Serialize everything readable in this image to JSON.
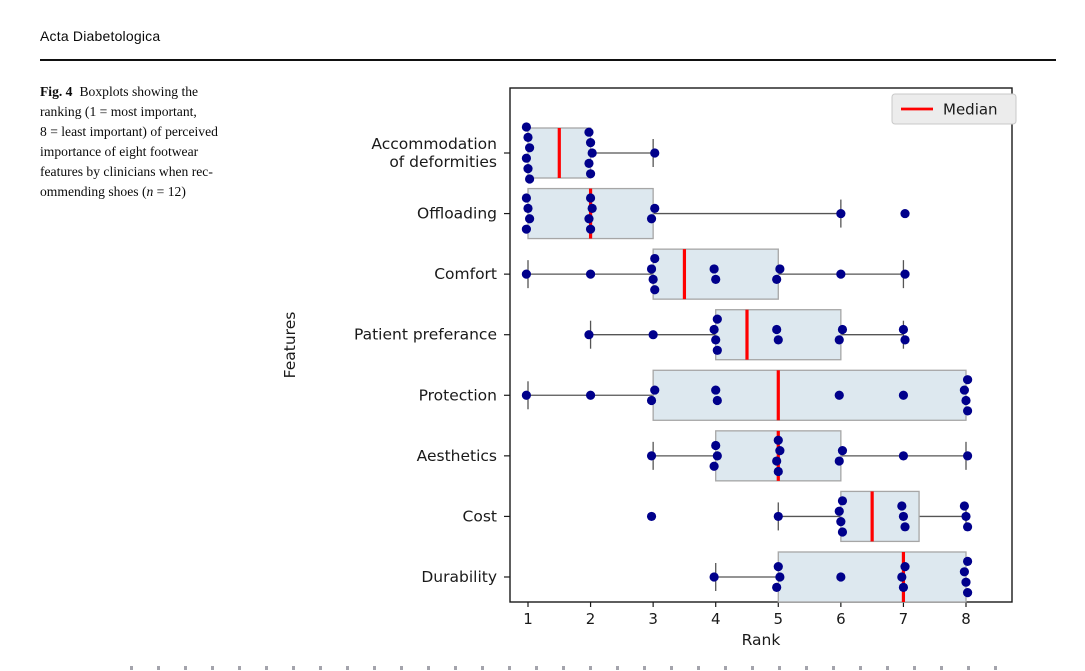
{
  "page": {
    "journal_header": "Acta Diabetologica"
  },
  "figure_caption": {
    "fig_label": "Fig. 4",
    "line1": "Boxplots showing the",
    "line2": "ranking (1 = most important,",
    "line3": "8 = least important) of perceived",
    "line4": "importance of eight footwear",
    "line5": "features by clinicians when rec-",
    "line6_pre": "ommending shoes (",
    "line6_n": "n",
    "line6_post": " = 12)"
  },
  "chart_data": {
    "type": "boxplot",
    "orientation": "horizontal",
    "title": "",
    "xlabel": "Rank",
    "ylabel": "Features",
    "xticks": [
      1,
      2,
      3,
      4,
      5,
      6,
      7,
      8
    ],
    "xlim": [
      0.71,
      8.74
    ],
    "n_per_group": 12,
    "grid": false,
    "legend": {
      "label": "Median",
      "position": "upper right",
      "line_color": "#ff0000"
    },
    "colors": {
      "box_fill": "#dde8ef",
      "box_edge": "#a6a6a6",
      "median": "#ff0000",
      "point": "#00008b",
      "whisker": "#555555",
      "spine": "#1a1a1a"
    },
    "features": [
      {
        "label": "Accommodation\nof deformities",
        "points": [
          1,
          1,
          1,
          1,
          1,
          1,
          2,
          2,
          2,
          2,
          2,
          3
        ],
        "q1": 1,
        "median": 1.5,
        "q3": 2,
        "whisker_low": 1,
        "whisker_high": 3,
        "outliers": []
      },
      {
        "label": "Offloading",
        "points": [
          1,
          1,
          1,
          1,
          2,
          2,
          2,
          2,
          3,
          3,
          6,
          7
        ],
        "q1": 1,
        "median": 2,
        "q3": 3,
        "whisker_low": 1,
        "whisker_high": 6,
        "outliers": [
          7
        ]
      },
      {
        "label": "Comfort",
        "points": [
          1,
          2,
          3,
          3,
          3,
          3,
          4,
          4,
          5,
          5,
          6,
          7
        ],
        "q1": 3,
        "median": 3.5,
        "q3": 5,
        "whisker_low": 1,
        "whisker_high": 7,
        "outliers": []
      },
      {
        "label": "Patient preferance",
        "points": [
          2,
          3,
          4,
          4,
          4,
          4,
          5,
          5,
          6,
          6,
          7,
          7
        ],
        "q1": 4,
        "median": 4.5,
        "q3": 6,
        "whisker_low": 2,
        "whisker_high": 7,
        "outliers": []
      },
      {
        "label": "Protection",
        "points": [
          1,
          2,
          3,
          3,
          4,
          4,
          6,
          7,
          8,
          8,
          8,
          8
        ],
        "q1": 3,
        "median": 5,
        "q3": 8,
        "whisker_low": 1,
        "whisker_high": 8,
        "outliers": []
      },
      {
        "label": "Aesthetics",
        "points": [
          3,
          4,
          4,
          4,
          5,
          5,
          5,
          5,
          6,
          6,
          7,
          8
        ],
        "q1": 4,
        "median": 5,
        "q3": 6,
        "whisker_low": 3,
        "whisker_high": 8,
        "outliers": []
      },
      {
        "label": "Cost",
        "points": [
          3,
          5,
          6,
          6,
          6,
          6,
          7,
          7,
          7,
          8,
          8,
          8
        ],
        "q1": 6,
        "median": 6.5,
        "q3": 7.25,
        "whisker_low": 5,
        "whisker_high": 8,
        "outliers": [
          3
        ]
      },
      {
        "label": "Durability",
        "points": [
          4,
          5,
          5,
          5,
          6,
          7,
          7,
          7,
          8,
          8,
          8,
          8
        ],
        "q1": 5,
        "median": 7,
        "q3": 8,
        "whisker_low": 4,
        "whisker_high": 8,
        "outliers": []
      }
    ]
  }
}
